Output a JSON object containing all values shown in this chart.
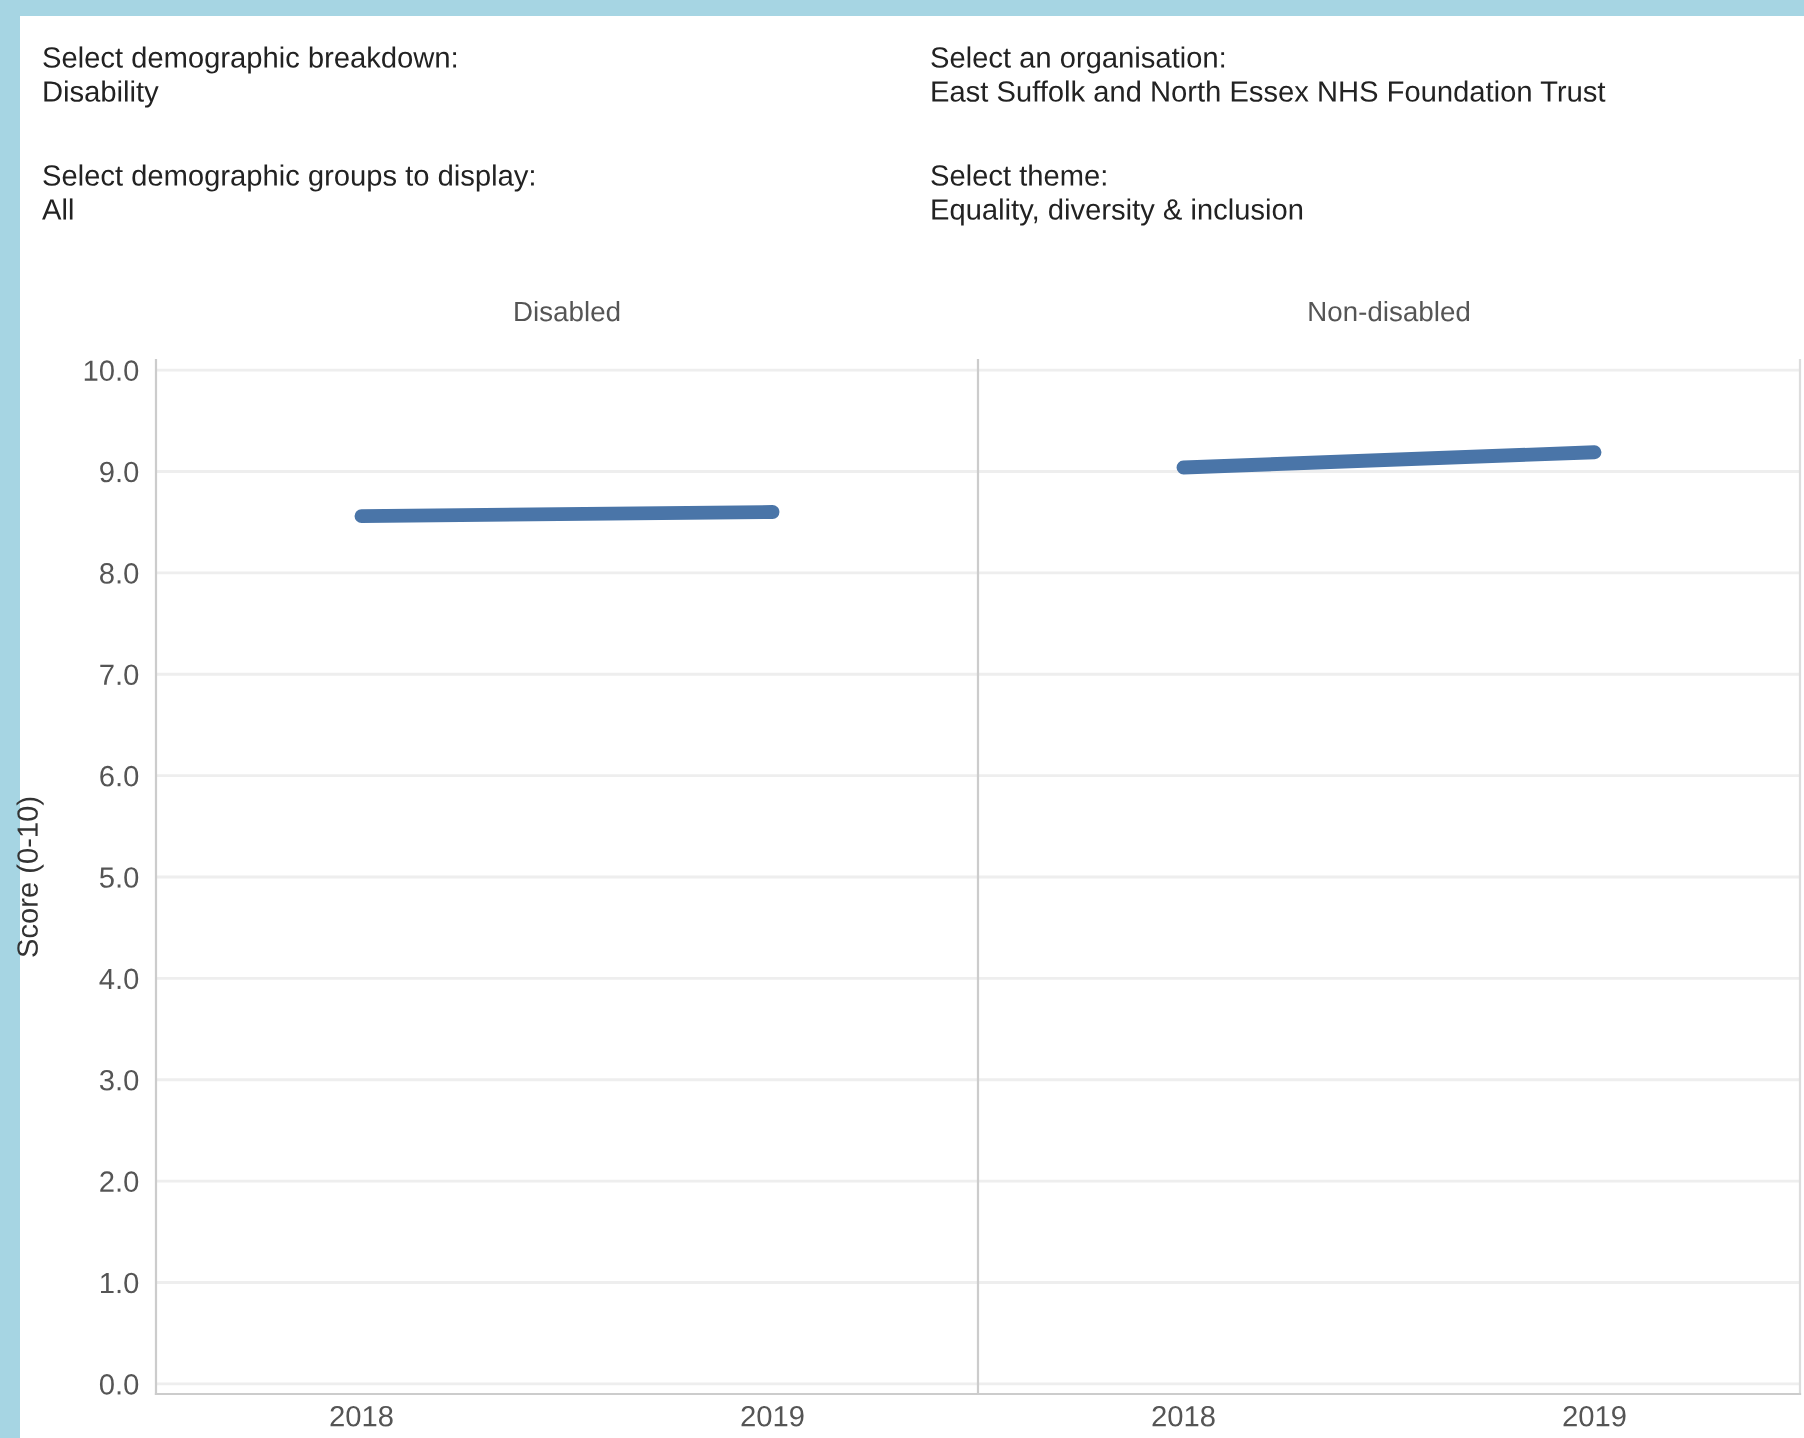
{
  "chart_data": [
    {
      "type": "line",
      "title": "Disabled",
      "ylabel": "Score (0-10)",
      "annotations": [
        "Select demographic breakdown:",
        "Disability",
        "Select an organisation:",
        "East Suffolk and North Essex NHS Foundation Trust",
        "Select demographic groups to display:",
        "All",
        "Select theme:",
        "Equality, diversity & inclusion"
      ],
      "categories": [
        "2018",
        "2019"
      ],
      "series": [
        {
          "color": "#4a75a8",
          "values": [
            8.56,
            8.6
          ]
        }
      ],
      "ylim": [
        -0.1,
        10.1
      ],
      "yticks": [
        {
          "value": 0,
          "label": "0.0"
        },
        {
          "value": 1,
          "label": "1.0"
        },
        {
          "value": 2,
          "label": "2.0"
        },
        {
          "value": 3,
          "label": "3.0"
        },
        {
          "value": 4,
          "label": "4.0"
        },
        {
          "value": 5,
          "label": "5.0"
        },
        {
          "value": 6,
          "label": "6.0"
        },
        {
          "value": 7,
          "label": "7.0"
        },
        {
          "value": 8,
          "label": "8.0"
        },
        {
          "value": 9,
          "label": "9.0"
        },
        {
          "value": 10,
          "label": "10.0"
        }
      ],
      "grid": "y",
      "marker": "none",
      "line_style": "solid"
    },
    {
      "type": "line",
      "title": "Non-disabled",
      "categories": [
        "2018",
        "2019"
      ],
      "series": [
        {
          "color": "#4a75a8",
          "values": [
            9.04,
            9.19
          ]
        }
      ],
      "ylim": [
        -0.1,
        10.1
      ],
      "grid": "y",
      "marker": "none",
      "line_style": "solid",
      "tick_labels": "x"
    }
  ]
}
